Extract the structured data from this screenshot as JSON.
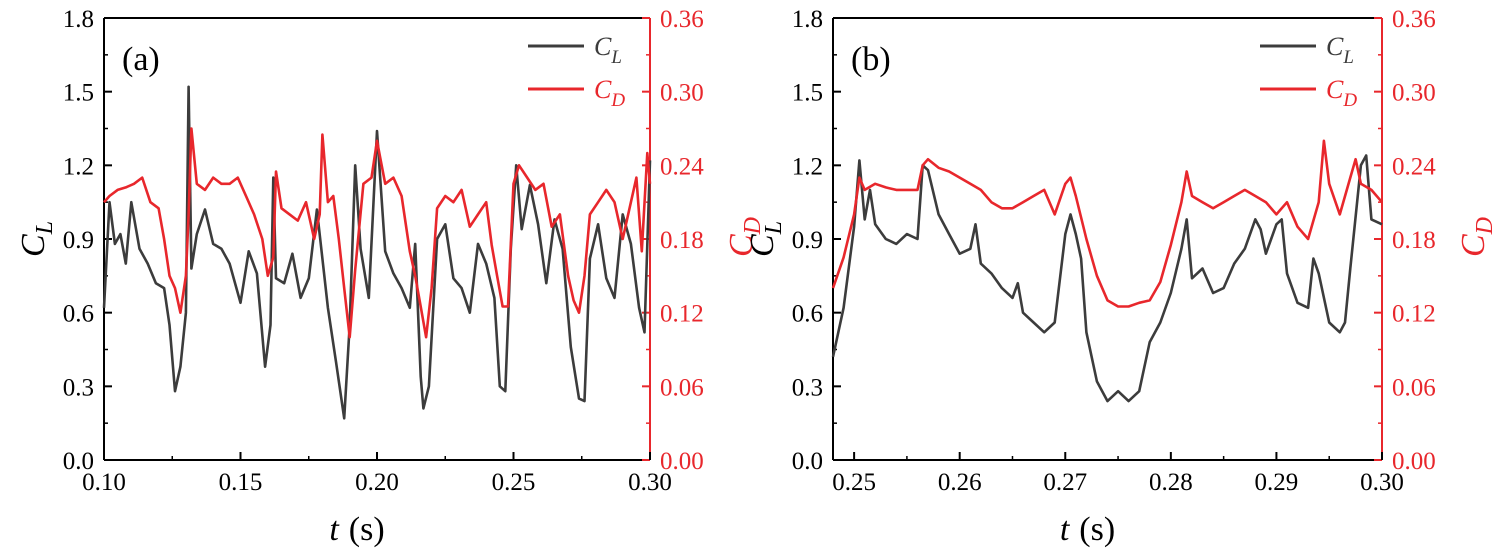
{
  "colors": {
    "cl": "#3c3c3c",
    "cd": "#e8272c",
    "axis": "#000000"
  },
  "chart_data": [
    {
      "type": "line",
      "panel_label": "(a)",
      "x_range": [
        0.1,
        0.3
      ],
      "x_ticks": [
        "0.10",
        "0.15",
        "0.20",
        "0.25",
        "0.30"
      ],
      "xlabel": {
        "var": "t",
        "unit": "(s)"
      },
      "ylabel_left": {
        "main": "C",
        "sub": "L"
      },
      "ylabel_right": {
        "main": "C",
        "sub": "D"
      },
      "ylim_left": [
        0,
        1.8
      ],
      "y_ticks_left": [
        "0.0",
        "0.3",
        "0.6",
        "0.9",
        "1.2",
        "1.5",
        "1.8"
      ],
      "ylim_right": [
        0,
        0.36
      ],
      "y_ticks_right": [
        "0.00",
        "0.06",
        "0.12",
        "0.18",
        "0.24",
        "0.30",
        "0.36"
      ],
      "legend": [
        {
          "main": "C",
          "sub": "L",
          "series": "CL"
        },
        {
          "main": "C",
          "sub": "D",
          "series": "CD"
        }
      ],
      "series": [
        {
          "name": "CL",
          "axis": "left",
          "x": [
            0.1,
            0.102,
            0.104,
            0.106,
            0.108,
            0.11,
            0.113,
            0.116,
            0.119,
            0.122,
            0.124,
            0.126,
            0.128,
            0.13,
            0.131,
            0.132,
            0.134,
            0.137,
            0.14,
            0.143,
            0.146,
            0.15,
            0.153,
            0.156,
            0.159,
            0.161,
            0.162,
            0.163,
            0.166,
            0.169,
            0.172,
            0.175,
            0.178,
            0.18,
            0.182,
            0.185,
            0.188,
            0.19,
            0.192,
            0.194,
            0.197,
            0.2,
            0.203,
            0.206,
            0.209,
            0.212,
            0.214,
            0.216,
            0.217,
            0.219,
            0.222,
            0.225,
            0.228,
            0.231,
            0.234,
            0.237,
            0.24,
            0.243,
            0.245,
            0.247,
            0.249,
            0.251,
            0.253,
            0.256,
            0.259,
            0.262,
            0.265,
            0.268,
            0.271,
            0.274,
            0.276,
            0.278,
            0.281,
            0.284,
            0.287,
            0.29,
            0.293,
            0.296,
            0.298,
            0.3
          ],
          "values": [
            0.62,
            1.05,
            0.88,
            0.92,
            0.8,
            1.05,
            0.86,
            0.8,
            0.72,
            0.7,
            0.55,
            0.28,
            0.38,
            0.6,
            1.52,
            0.78,
            0.92,
            1.02,
            0.88,
            0.86,
            0.8,
            0.64,
            0.85,
            0.76,
            0.38,
            0.55,
            1.15,
            0.74,
            0.72,
            0.84,
            0.66,
            0.74,
            1.02,
            0.82,
            0.62,
            0.4,
            0.17,
            0.55,
            1.2,
            0.86,
            0.66,
            1.34,
            0.85,
            0.76,
            0.7,
            0.62,
            0.88,
            0.34,
            0.21,
            0.3,
            0.9,
            0.96,
            0.74,
            0.7,
            0.6,
            0.88,
            0.8,
            0.66,
            0.3,
            0.28,
            0.86,
            1.2,
            0.94,
            1.12,
            0.96,
            0.72,
            0.98,
            0.86,
            0.46,
            0.25,
            0.24,
            0.82,
            0.96,
            0.74,
            0.66,
            1.0,
            0.88,
            0.62,
            0.52,
            1.22
          ]
        },
        {
          "name": "CD",
          "axis": "right",
          "x": [
            0.1,
            0.102,
            0.105,
            0.108,
            0.111,
            0.114,
            0.117,
            0.12,
            0.122,
            0.124,
            0.126,
            0.128,
            0.13,
            0.131,
            0.132,
            0.134,
            0.137,
            0.14,
            0.143,
            0.146,
            0.149,
            0.152,
            0.155,
            0.158,
            0.16,
            0.162,
            0.163,
            0.165,
            0.168,
            0.171,
            0.174,
            0.177,
            0.179,
            0.18,
            0.182,
            0.184,
            0.186,
            0.188,
            0.19,
            0.192,
            0.195,
            0.198,
            0.2,
            0.203,
            0.206,
            0.209,
            0.212,
            0.214,
            0.216,
            0.218,
            0.22,
            0.222,
            0.225,
            0.228,
            0.231,
            0.234,
            0.237,
            0.24,
            0.242,
            0.244,
            0.246,
            0.248,
            0.25,
            0.252,
            0.255,
            0.258,
            0.261,
            0.264,
            0.267,
            0.27,
            0.272,
            0.274,
            0.276,
            0.278,
            0.281,
            0.284,
            0.287,
            0.29,
            0.293,
            0.295,
            0.297,
            0.299,
            0.3
          ],
          "values": [
            0.21,
            0.215,
            0.22,
            0.222,
            0.225,
            0.23,
            0.21,
            0.205,
            0.18,
            0.15,
            0.14,
            0.12,
            0.15,
            0.2,
            0.27,
            0.225,
            0.22,
            0.23,
            0.225,
            0.225,
            0.23,
            0.215,
            0.2,
            0.18,
            0.15,
            0.165,
            0.235,
            0.205,
            0.2,
            0.195,
            0.21,
            0.18,
            0.2,
            0.265,
            0.21,
            0.215,
            0.18,
            0.14,
            0.1,
            0.155,
            0.225,
            0.23,
            0.26,
            0.225,
            0.23,
            0.215,
            0.17,
            0.15,
            0.125,
            0.1,
            0.14,
            0.205,
            0.215,
            0.21,
            0.22,
            0.19,
            0.2,
            0.21,
            0.175,
            0.15,
            0.125,
            0.125,
            0.225,
            0.24,
            0.23,
            0.22,
            0.225,
            0.19,
            0.2,
            0.15,
            0.13,
            0.12,
            0.15,
            0.2,
            0.21,
            0.22,
            0.21,
            0.18,
            0.21,
            0.23,
            0.17,
            0.25,
            0.225
          ]
        }
      ]
    },
    {
      "type": "line",
      "panel_label": "(b)",
      "x_range": [
        0.248,
        0.3
      ],
      "x_ticks": [
        "0.25",
        "0.26",
        "0.27",
        "0.28",
        "0.29",
        "0.30"
      ],
      "x_tick_values": [
        0.25,
        0.26,
        0.27,
        0.28,
        0.29,
        0.3
      ],
      "xlabel": {
        "var": "t",
        "unit": "(s)"
      },
      "ylabel_left": {
        "main": "C",
        "sub": "L"
      },
      "ylabel_right": {
        "main": "C",
        "sub": "D"
      },
      "ylim_left": [
        0,
        1.8
      ],
      "y_ticks_left": [
        "0.0",
        "0.3",
        "0.6",
        "0.9",
        "1.2",
        "1.5",
        "1.8"
      ],
      "ylim_right": [
        0,
        0.36
      ],
      "y_ticks_right": [
        "0.00",
        "0.06",
        "0.12",
        "0.18",
        "0.24",
        "0.30",
        "0.36"
      ],
      "legend": [
        {
          "main": "C",
          "sub": "L",
          "series": "CL"
        },
        {
          "main": "C",
          "sub": "D",
          "series": "CD"
        }
      ],
      "series": [
        {
          "name": "CL",
          "axis": "left",
          "x": [
            0.248,
            0.249,
            0.25,
            0.2505,
            0.251,
            0.2515,
            0.252,
            0.253,
            0.254,
            0.255,
            0.256,
            0.2565,
            0.257,
            0.258,
            0.259,
            0.26,
            0.261,
            0.2615,
            0.262,
            0.263,
            0.264,
            0.265,
            0.2655,
            0.266,
            0.267,
            0.268,
            0.269,
            0.27,
            0.2705,
            0.271,
            0.2715,
            0.272,
            0.273,
            0.274,
            0.275,
            0.276,
            0.277,
            0.278,
            0.279,
            0.28,
            0.281,
            0.2815,
            0.282,
            0.283,
            0.284,
            0.285,
            0.286,
            0.287,
            0.288,
            0.2885,
            0.289,
            0.29,
            0.2905,
            0.291,
            0.292,
            0.293,
            0.2935,
            0.294,
            0.295,
            0.296,
            0.2965,
            0.297,
            0.298,
            0.2985,
            0.299,
            0.3
          ],
          "values": [
            0.42,
            0.62,
            0.95,
            1.22,
            0.98,
            1.1,
            0.96,
            0.9,
            0.88,
            0.92,
            0.9,
            1.2,
            1.18,
            1.0,
            0.92,
            0.84,
            0.86,
            0.96,
            0.8,
            0.76,
            0.7,
            0.66,
            0.72,
            0.6,
            0.56,
            0.52,
            0.56,
            0.92,
            1.0,
            0.92,
            0.82,
            0.52,
            0.32,
            0.24,
            0.28,
            0.24,
            0.28,
            0.48,
            0.56,
            0.68,
            0.86,
            0.98,
            0.74,
            0.78,
            0.68,
            0.7,
            0.8,
            0.86,
            0.98,
            0.94,
            0.84,
            0.96,
            0.98,
            0.76,
            0.64,
            0.62,
            0.82,
            0.76,
            0.56,
            0.52,
            0.56,
            0.78,
            1.2,
            1.24,
            0.98,
            0.96
          ]
        },
        {
          "name": "CD",
          "axis": "right",
          "x": [
            0.248,
            0.249,
            0.25,
            0.2505,
            0.251,
            0.252,
            0.253,
            0.254,
            0.255,
            0.256,
            0.2565,
            0.257,
            0.258,
            0.259,
            0.26,
            0.261,
            0.262,
            0.263,
            0.264,
            0.265,
            0.266,
            0.267,
            0.268,
            0.269,
            0.27,
            0.2705,
            0.271,
            0.272,
            0.273,
            0.274,
            0.275,
            0.276,
            0.277,
            0.278,
            0.279,
            0.28,
            0.281,
            0.2815,
            0.282,
            0.283,
            0.284,
            0.285,
            0.286,
            0.287,
            0.288,
            0.289,
            0.29,
            0.291,
            0.292,
            0.293,
            0.294,
            0.2945,
            0.295,
            0.296,
            0.297,
            0.2975,
            0.298,
            0.299,
            0.3
          ],
          "values": [
            0.14,
            0.165,
            0.2,
            0.23,
            0.22,
            0.225,
            0.222,
            0.22,
            0.22,
            0.22,
            0.24,
            0.245,
            0.238,
            0.235,
            0.23,
            0.225,
            0.22,
            0.21,
            0.205,
            0.205,
            0.21,
            0.215,
            0.22,
            0.2,
            0.225,
            0.23,
            0.215,
            0.18,
            0.15,
            0.13,
            0.125,
            0.125,
            0.128,
            0.13,
            0.145,
            0.175,
            0.21,
            0.235,
            0.215,
            0.21,
            0.205,
            0.21,
            0.215,
            0.22,
            0.215,
            0.21,
            0.2,
            0.21,
            0.19,
            0.18,
            0.21,
            0.26,
            0.225,
            0.2,
            0.23,
            0.245,
            0.225,
            0.22,
            0.21
          ]
        }
      ]
    }
  ]
}
